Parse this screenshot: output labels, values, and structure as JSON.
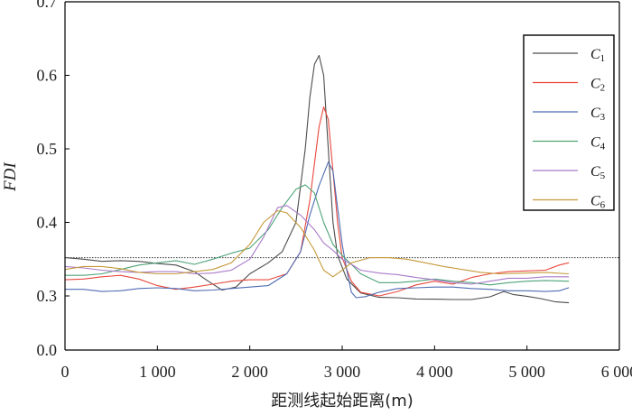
{
  "chart_data": {
    "type": "line",
    "title": "",
    "xlabel": "距测线起始距离(m)",
    "ylabel": "FDI",
    "xlim": [
      0,
      6000
    ],
    "x_ticks": [
      {
        "value": 0,
        "label": "0"
      },
      {
        "value": 1000,
        "label": "1 000"
      },
      {
        "value": 2000,
        "label": "2 000"
      },
      {
        "value": 3000,
        "label": "3 000"
      },
      {
        "value": 4000,
        "label": "4 000"
      },
      {
        "value": 5000,
        "label": "5 000"
      },
      {
        "value": 6000,
        "label": "6 000"
      }
    ],
    "y_ticks": [
      {
        "value": 0.0,
        "label": "0.0"
      },
      {
        "value": 0.3,
        "label": "0.3"
      },
      {
        "value": 0.4,
        "label": "0.4"
      },
      {
        "value": 0.5,
        "label": "0.5"
      },
      {
        "value": 0.6,
        "label": "0.6"
      },
      {
        "value": 0.7,
        "label": "0.7"
      }
    ],
    "y_axis_note": "broken axis: 0.0 directly below 0.3",
    "grid": false,
    "legend_position": "top-right",
    "reference_line": {
      "y": 0.352,
      "style": "dotted",
      "color": "#333333"
    },
    "series": [
      {
        "name": "C",
        "subscript": "1",
        "color": "#4d4d4d",
        "points": [
          [
            0,
            0.352
          ],
          [
            200,
            0.35
          ],
          [
            400,
            0.347
          ],
          [
            600,
            0.348
          ],
          [
            800,
            0.347
          ],
          [
            1000,
            0.344
          ],
          [
            1200,
            0.342
          ],
          [
            1400,
            0.333
          ],
          [
            1550,
            0.32
          ],
          [
            1700,
            0.308
          ],
          [
            1850,
            0.312
          ],
          [
            2000,
            0.33
          ],
          [
            2200,
            0.345
          ],
          [
            2350,
            0.36
          ],
          [
            2500,
            0.4
          ],
          [
            2600,
            0.5
          ],
          [
            2650,
            0.57
          ],
          [
            2700,
            0.615
          ],
          [
            2750,
            0.627
          ],
          [
            2800,
            0.6
          ],
          [
            2850,
            0.5
          ],
          [
            2900,
            0.4
          ],
          [
            2950,
            0.355
          ],
          [
            3050,
            0.323
          ],
          [
            3200,
            0.304
          ],
          [
            3400,
            0.292
          ],
          [
            3600,
            0.29
          ],
          [
            3800,
            0.283
          ],
          [
            4000,
            0.282
          ],
          [
            4200,
            0.28
          ],
          [
            4400,
            0.28
          ],
          [
            4600,
            0.295
          ],
          [
            4750,
            0.306
          ],
          [
            4850,
            0.302
          ],
          [
            5000,
            0.298
          ],
          [
            5150,
            0.285
          ],
          [
            5300,
            0.268
          ],
          [
            5450,
            0.262
          ]
        ]
      },
      {
        "name": "C",
        "subscript": "2",
        "color": "#e8483e",
        "points": [
          [
            0,
            0.322
          ],
          [
            200,
            0.323
          ],
          [
            400,
            0.326
          ],
          [
            600,
            0.328
          ],
          [
            800,
            0.323
          ],
          [
            1000,
            0.314
          ],
          [
            1200,
            0.309
          ],
          [
            1400,
            0.312
          ],
          [
            1600,
            0.316
          ],
          [
            1800,
            0.32
          ],
          [
            2000,
            0.322
          ],
          [
            2200,
            0.322
          ],
          [
            2400,
            0.33
          ],
          [
            2550,
            0.36
          ],
          [
            2650,
            0.43
          ],
          [
            2750,
            0.53
          ],
          [
            2800,
            0.557
          ],
          [
            2850,
            0.54
          ],
          [
            2900,
            0.47
          ],
          [
            2950,
            0.4
          ],
          [
            3000,
            0.352
          ],
          [
            3100,
            0.32
          ],
          [
            3200,
            0.305
          ],
          [
            3400,
            0.3
          ],
          [
            3600,
            0.306
          ],
          [
            3800,
            0.315
          ],
          [
            4000,
            0.32
          ],
          [
            4200,
            0.316
          ],
          [
            4400,
            0.325
          ],
          [
            4600,
            0.33
          ],
          [
            4800,
            0.333
          ],
          [
            5000,
            0.334
          ],
          [
            5200,
            0.335
          ],
          [
            5350,
            0.342
          ],
          [
            5450,
            0.345
          ]
        ]
      },
      {
        "name": "C",
        "subscript": "3",
        "color": "#4f6cb3",
        "points": [
          [
            0,
            0.309
          ],
          [
            200,
            0.309
          ],
          [
            400,
            0.306
          ],
          [
            600,
            0.307
          ],
          [
            800,
            0.31
          ],
          [
            1000,
            0.311
          ],
          [
            1200,
            0.31
          ],
          [
            1400,
            0.307
          ],
          [
            1600,
            0.308
          ],
          [
            1800,
            0.31
          ],
          [
            2000,
            0.312
          ],
          [
            2200,
            0.314
          ],
          [
            2400,
            0.33
          ],
          [
            2550,
            0.36
          ],
          [
            2650,
            0.41
          ],
          [
            2750,
            0.45
          ],
          [
            2850,
            0.482
          ],
          [
            2900,
            0.47
          ],
          [
            2950,
            0.42
          ],
          [
            3000,
            0.37
          ],
          [
            3050,
            0.335
          ],
          [
            3100,
            0.305
          ],
          [
            3150,
            0.29
          ],
          [
            3250,
            0.296
          ],
          [
            3400,
            0.305
          ],
          [
            3600,
            0.31
          ],
          [
            3800,
            0.311
          ],
          [
            4000,
            0.312
          ],
          [
            4200,
            0.312
          ],
          [
            4400,
            0.31
          ],
          [
            4600,
            0.309
          ],
          [
            4800,
            0.307
          ],
          [
            5000,
            0.307
          ],
          [
            5200,
            0.306
          ],
          [
            5350,
            0.307
          ],
          [
            5450,
            0.311
          ]
        ]
      },
      {
        "name": "C",
        "subscript": "4",
        "color": "#4fa377",
        "points": [
          [
            0,
            0.328
          ],
          [
            200,
            0.328
          ],
          [
            400,
            0.33
          ],
          [
            600,
            0.336
          ],
          [
            800,
            0.342
          ],
          [
            1000,
            0.345
          ],
          [
            1200,
            0.348
          ],
          [
            1400,
            0.343
          ],
          [
            1600,
            0.35
          ],
          [
            1800,
            0.358
          ],
          [
            2000,
            0.365
          ],
          [
            2200,
            0.39
          ],
          [
            2350,
            0.42
          ],
          [
            2500,
            0.445
          ],
          [
            2600,
            0.451
          ],
          [
            2700,
            0.44
          ],
          [
            2800,
            0.4
          ],
          [
            2900,
            0.37
          ],
          [
            3000,
            0.355
          ],
          [
            3100,
            0.343
          ],
          [
            3200,
            0.33
          ],
          [
            3400,
            0.318
          ],
          [
            3600,
            0.318
          ],
          [
            3800,
            0.32
          ],
          [
            4000,
            0.323
          ],
          [
            4200,
            0.32
          ],
          [
            4400,
            0.318
          ],
          [
            4600,
            0.315
          ],
          [
            4800,
            0.318
          ],
          [
            5000,
            0.32
          ],
          [
            5200,
            0.321
          ],
          [
            5450,
            0.32
          ]
        ]
      },
      {
        "name": "C",
        "subscript": "5",
        "color": "#a97ac9",
        "points": [
          [
            0,
            0.34
          ],
          [
            200,
            0.338
          ],
          [
            400,
            0.335
          ],
          [
            600,
            0.333
          ],
          [
            800,
            0.332
          ],
          [
            1000,
            0.333
          ],
          [
            1200,
            0.333
          ],
          [
            1400,
            0.33
          ],
          [
            1600,
            0.331
          ],
          [
            1800,
            0.335
          ],
          [
            2000,
            0.35
          ],
          [
            2150,
            0.38
          ],
          [
            2300,
            0.42
          ],
          [
            2400,
            0.423
          ],
          [
            2550,
            0.41
          ],
          [
            2700,
            0.39
          ],
          [
            2800,
            0.372
          ],
          [
            2900,
            0.362
          ],
          [
            3000,
            0.35
          ],
          [
            3100,
            0.343
          ],
          [
            3200,
            0.335
          ],
          [
            3400,
            0.331
          ],
          [
            3600,
            0.329
          ],
          [
            3800,
            0.325
          ],
          [
            4000,
            0.322
          ],
          [
            4200,
            0.318
          ],
          [
            4400,
            0.316
          ],
          [
            4600,
            0.32
          ],
          [
            4800,
            0.324
          ],
          [
            5000,
            0.324
          ],
          [
            5200,
            0.326
          ],
          [
            5450,
            0.326
          ]
        ]
      },
      {
        "name": "C",
        "subscript": "6",
        "color": "#c69a3c",
        "points": [
          [
            0,
            0.336
          ],
          [
            200,
            0.34
          ],
          [
            400,
            0.34
          ],
          [
            600,
            0.337
          ],
          [
            800,
            0.332
          ],
          [
            1000,
            0.33
          ],
          [
            1200,
            0.33
          ],
          [
            1400,
            0.333
          ],
          [
            1600,
            0.336
          ],
          [
            1800,
            0.345
          ],
          [
            2000,
            0.37
          ],
          [
            2150,
            0.4
          ],
          [
            2300,
            0.416
          ],
          [
            2400,
            0.413
          ],
          [
            2550,
            0.393
          ],
          [
            2700,
            0.362
          ],
          [
            2800,
            0.335
          ],
          [
            2900,
            0.326
          ],
          [
            3000,
            0.335
          ],
          [
            3100,
            0.345
          ],
          [
            3300,
            0.352
          ],
          [
            3500,
            0.352
          ],
          [
            3700,
            0.35
          ],
          [
            3900,
            0.345
          ],
          [
            4100,
            0.34
          ],
          [
            4300,
            0.336
          ],
          [
            4500,
            0.332
          ],
          [
            4700,
            0.33
          ],
          [
            5000,
            0.331
          ],
          [
            5200,
            0.332
          ],
          [
            5450,
            0.33
          ]
        ]
      }
    ]
  }
}
